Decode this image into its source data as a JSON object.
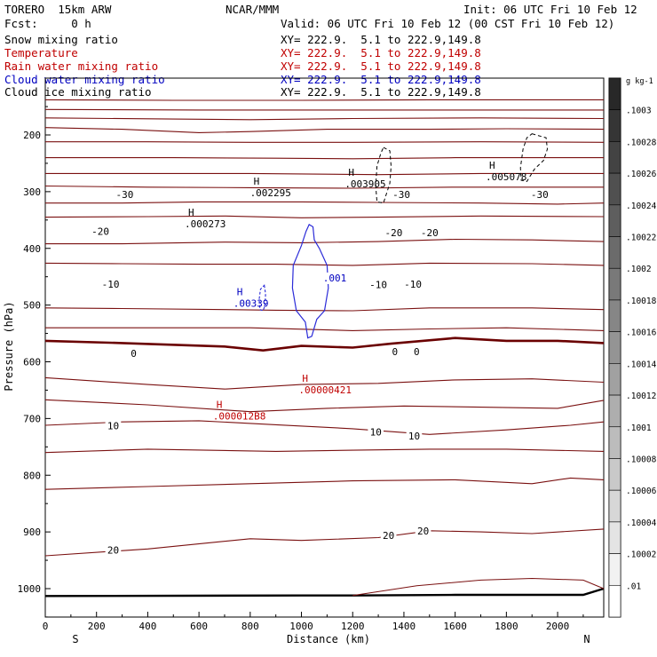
{
  "header": {
    "model": "TORERO  15km ARW",
    "center": "NCAR/MMM",
    "init": "Init: 06 UTC Fri 10 Feb 12",
    "fcst": "Fcst:     0 h",
    "valid": "Valid: 06 UTC Fri 10 Feb 12 (00 CST Fri 10 Feb 12)"
  },
  "fields": [
    {
      "name": "Snow mixing ratio",
      "xy": "XY= 222.9.  5.1 to 222.9,149.8",
      "color": "#000000"
    },
    {
      "name": "Temperature",
      "xy": "XY= 222.9.  5.1 to 222.9,149.8",
      "color": "#c00000"
    },
    {
      "name": "Rain water mixing ratio",
      "xy": "XY= 222.9.  5.1 to 222.9,149.8",
      "color": "#c00000"
    },
    {
      "name": "Cloud water mixing ratio",
      "xy": "XY= 222.9.  5.1 to 222.9,149.8",
      "color": "#0000c0"
    },
    {
      "name": "Cloud ice mixing ratio",
      "xy": "XY= 222.9.  5.1 to 222.9,149.8",
      "color": "#000000"
    }
  ],
  "chart_data": {
    "type": "contour",
    "xlabel": "Distance (km)",
    "ylabel": "Pressure (hPa)",
    "x_ticks": [
      0,
      200,
      400,
      600,
      800,
      1000,
      1200,
      1400,
      1600,
      1800,
      2000
    ],
    "y_ticks": [
      200,
      300,
      400,
      500,
      600,
      700,
      800,
      900,
      1000
    ],
    "xlim": [
      0,
      2180
    ],
    "ylim": [
      1045,
      120
    ],
    "left_end": "S",
    "right_end": "N",
    "colorbar": {
      "unit": "g kg-1",
      "labels": [
        ".1003",
        ".10028",
        ".10026",
        ".10024",
        ".10022",
        ".1002",
        ".10018",
        ".10016",
        ".10014",
        ".10012",
        ".1001",
        ".10008",
        ".10006",
        ".10004",
        ".10002",
        ".01"
      ]
    },
    "temperature_labels": [
      {
        "text": "-30",
        "x": 310,
        "p": 305
      },
      {
        "text": "-30",
        "x": 1390,
        "p": 305
      },
      {
        "text": "-30",
        "x": 1930,
        "p": 305
      },
      {
        "text": "-20",
        "x": 215,
        "p": 370
      },
      {
        "text": "-20",
        "x": 1360,
        "p": 372
      },
      {
        "text": "-20",
        "x": 1500,
        "p": 372
      },
      {
        "text": "-10",
        "x": 255,
        "p": 463
      },
      {
        "text": "-10",
        "x": 1300,
        "p": 464
      },
      {
        "text": "-10",
        "x": 1435,
        "p": 463
      },
      {
        "text": "0",
        "x": 345,
        "p": 585
      },
      {
        "text": "0",
        "x": 1365,
        "p": 582
      },
      {
        "text": "0",
        "x": 1450,
        "p": 582
      },
      {
        "text": "10",
        "x": 265,
        "p": 713
      },
      {
        "text": "10",
        "x": 1290,
        "p": 724
      },
      {
        "text": "10",
        "x": 1440,
        "p": 731
      },
      {
        "text": "20",
        "x": 265,
        "p": 932
      },
      {
        "text": "20",
        "x": 1340,
        "p": 906
      },
      {
        "text": "20",
        "x": 1475,
        "p": 898
      }
    ],
    "maxima": [
      {
        "field": "snow",
        "text": ".000273",
        "x": 655,
        "p": 358,
        "color": "#000000"
      },
      {
        "field": "snow",
        "text": ".002295",
        "x": 910,
        "p": 303,
        "color": "#000000"
      },
      {
        "field": "snow",
        "text": ".003905",
        "x": 1280,
        "p": 288,
        "color": "#000000"
      },
      {
        "field": "snow",
        "text": ".005078",
        "x": 1830,
        "p": 275,
        "color": "#000000"
      },
      {
        "field": "cloud water",
        "text": ".00339",
        "x": 845,
        "p": 498,
        "color": "#0000c0"
      },
      {
        "field": "rain",
        "text": ".00000421",
        "x": 1100,
        "p": 651,
        "color": "#c00000"
      },
      {
        "field": "rain",
        "text": ".000012B8",
        "x": 765,
        "p": 697,
        "color": "#c00000"
      }
    ],
    "contour_labels": [
      {
        "text": ".001",
        "x": 1130,
        "p": 452,
        "color": "#0000c0"
      }
    ]
  }
}
